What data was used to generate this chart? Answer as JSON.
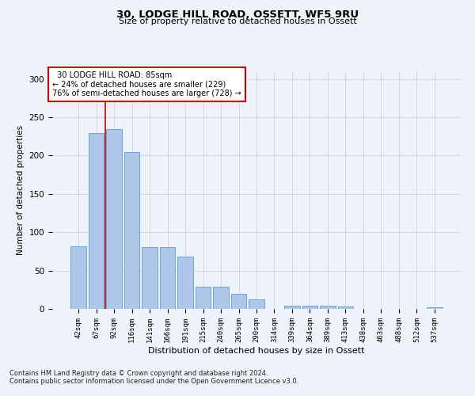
{
  "title1": "30, LODGE HILL ROAD, OSSETT, WF5 9RU",
  "title2": "Size of property relative to detached houses in Ossett",
  "xlabel": "Distribution of detached houses by size in Ossett",
  "ylabel": "Number of detached properties",
  "footnote1": "Contains HM Land Registry data © Crown copyright and database right 2024.",
  "footnote2": "Contains public sector information licensed under the Open Government Licence v3.0.",
  "annotation_line1": "  30 LODGE HILL ROAD: 85sqm  ",
  "annotation_line2": "← 24% of detached houses are smaller (229)",
  "annotation_line3": "76% of semi-detached houses are larger (728) →",
  "bar_categories": [
    "42sqm",
    "67sqm",
    "92sqm",
    "116sqm",
    "141sqm",
    "166sqm",
    "191sqm",
    "215sqm",
    "240sqm",
    "265sqm",
    "290sqm",
    "314sqm",
    "339sqm",
    "364sqm",
    "389sqm",
    "413sqm",
    "438sqm",
    "463sqm",
    "488sqm",
    "512sqm",
    "537sqm"
  ],
  "bar_values": [
    82,
    229,
    235,
    205,
    81,
    81,
    68,
    29,
    29,
    20,
    12,
    0,
    4,
    4,
    4,
    3,
    0,
    0,
    0,
    0,
    2
  ],
  "bar_color": "#aec6e8",
  "bar_edge_color": "#5b9bd5",
  "grid_color": "#d0d8e8",
  "background_color": "#eef2f9",
  "vline_color": "#cc0000",
  "annotation_box_color": "#ffffff",
  "annotation_box_edge": "#cc0000",
  "ylim": [
    0,
    310
  ],
  "yticks": [
    0,
    50,
    100,
    150,
    200,
    250,
    300
  ]
}
